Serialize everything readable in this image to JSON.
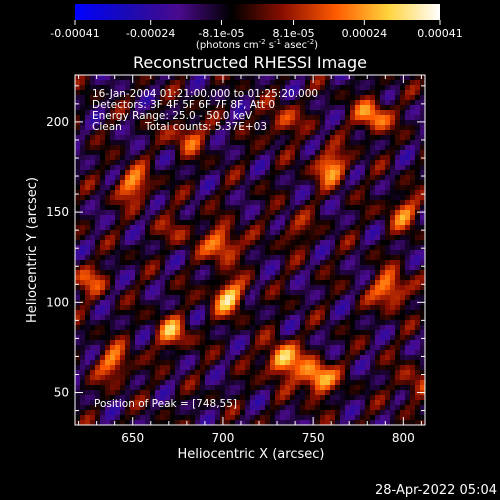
{
  "chart_data": {
    "type": "heatmap",
    "title": "Reconstructed RHESSI Image",
    "xlabel": "Heliocentric X (arcsec)",
    "ylabel": "Heliocentric Y (arcsec)",
    "xlim": [
      618,
      812
    ],
    "ylim": [
      32,
      226
    ],
    "x_ticks": [
      650,
      700,
      750,
      800
    ],
    "y_ticks": [
      50,
      100,
      150,
      200
    ],
    "grid": false,
    "colorbar": {
      "range": [
        -0.00041,
        0.00041
      ],
      "tick_values": [
        -0.00041,
        -0.00024,
        -8.1e-05,
        8.1e-05,
        0.00024,
        0.00041
      ],
      "tick_labels": [
        "-0.00041",
        "-0.00024",
        "-8.1e-05",
        "8.1e-05",
        "0.00024",
        "0.00041"
      ],
      "unit_label": "(photons cm",
      "unit_sup1": "-2",
      "unit_mid": " s",
      "unit_sup2": "-1",
      "unit_mid2": " asec",
      "unit_sup3": "-2",
      "unit_end": ")",
      "colormap": [
        "#0000ff",
        "#1a0ab4",
        "#4a0a8c",
        "#000000",
        "#8b0f00",
        "#ff5a00",
        "#ffd23c",
        "#ffffff"
      ]
    },
    "annotations": {
      "time_range": "16-Jan-2004 01:21:00.000 to 01:25:20.000",
      "detectors": "Detectors: 3F 4F 5F 6F 7F 8F, Att 0",
      "energy": "Energy Range: 25.0 - 50.0 keV",
      "algorithm": "Clean",
      "counts": "Total counts: 5.37E+03",
      "peak": "Position of Peak = [748,55]"
    },
    "sources": [
      {
        "x": 733,
        "y": 68,
        "peak": 0.00041
      },
      {
        "x": 752,
        "y": 58,
        "peak": 0.00041
      },
      {
        "x": 703,
        "y": 103,
        "peak": 0.00036
      },
      {
        "x": 700,
        "y": 132,
        "peak": 0.00034
      },
      {
        "x": 793,
        "y": 107,
        "peak": 0.00035
      },
      {
        "x": 783,
        "y": 203,
        "peak": 0.00033
      },
      {
        "x": 760,
        "y": 175,
        "peak": 0.00032
      },
      {
        "x": 650,
        "y": 165,
        "peak": 0.0003
      },
      {
        "x": 640,
        "y": 66,
        "peak": 0.00028
      },
      {
        "x": 672,
        "y": 83,
        "peak": 0.00028
      },
      {
        "x": 680,
        "y": 192,
        "peak": 0.00024
      },
      {
        "x": 733,
        "y": 200,
        "peak": 0.00022
      },
      {
        "x": 800,
        "y": 150,
        "peak": 0.00024
      },
      {
        "x": 625,
        "y": 112,
        "peak": 0.0002
      },
      {
        "x": 805,
        "y": 55,
        "peak": 0.00018
      },
      {
        "x": 740,
        "y": 140,
        "peak": 0.00014
      },
      {
        "x": 676,
        "y": 140,
        "peak": 0.00014
      }
    ]
  },
  "footer": {
    "timestamp": "28-Apr-2022 05:04"
  }
}
